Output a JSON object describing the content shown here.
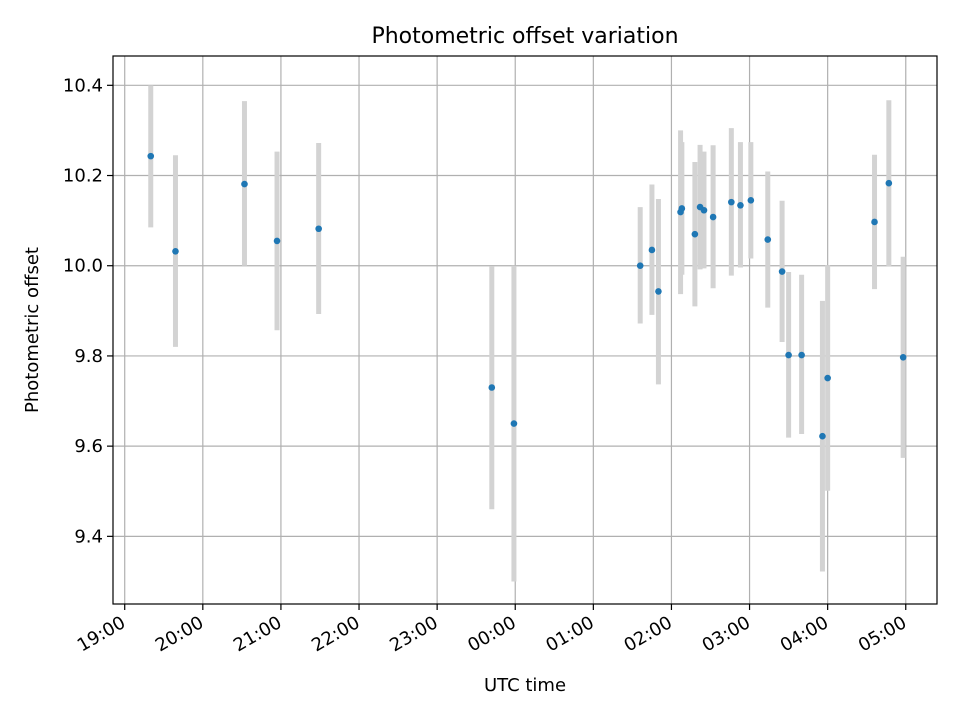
{
  "chart_data": {
    "type": "scatter",
    "title": "Photometric offset variation",
    "xlabel": "UTC time",
    "ylabel": "Photometric offset",
    "x_tick_labels": [
      "19:00",
      "20:00",
      "21:00",
      "22:00",
      "23:00",
      "00:00",
      "01:00",
      "02:00",
      "03:00",
      "04:00",
      "05:00"
    ],
    "y_ticks": [
      9.4,
      9.6,
      9.8,
      10.0,
      10.2,
      10.4
    ],
    "x_range_hours": [
      18.85,
      29.4
    ],
    "ylim": [
      9.25,
      10.465
    ],
    "grid": true,
    "error_bar_color": "#d3d3d3",
    "point_color": "#1f77b4",
    "points": [
      {
        "t": "19:20",
        "y": 10.243,
        "lo": 10.085,
        "hi": 10.4
      },
      {
        "t": "19:39",
        "y": 10.032,
        "lo": 9.82,
        "hi": 10.245
      },
      {
        "t": "20:32",
        "y": 10.181,
        "lo": 10.0,
        "hi": 10.365
      },
      {
        "t": "20:57",
        "y": 10.055,
        "lo": 9.857,
        "hi": 10.253
      },
      {
        "t": "21:29",
        "y": 10.082,
        "lo": 9.893,
        "hi": 10.272
      },
      {
        "t": "23:42",
        "y": 9.73,
        "lo": 9.46,
        "hi": 9.998
      },
      {
        "t": "23:59",
        "y": 9.65,
        "lo": 9.3,
        "hi": 10.0
      },
      {
        "t": "01:36",
        "y": 10.0,
        "lo": 9.872,
        "hi": 10.13
      },
      {
        "t": "01:45",
        "y": 10.035,
        "lo": 9.891,
        "hi": 10.18
      },
      {
        "t": "01:50",
        "y": 9.943,
        "lo": 9.737,
        "hi": 10.148
      },
      {
        "t": "02:07",
        "y": 10.119,
        "lo": 9.937,
        "hi": 10.3
      },
      {
        "t": "02:08",
        "y": 10.127,
        "lo": 9.98,
        "hi": 10.274
      },
      {
        "t": "02:18",
        "y": 10.07,
        "lo": 9.91,
        "hi": 10.23
      },
      {
        "t": "02:22",
        "y": 10.13,
        "lo": 9.992,
        "hi": 10.268
      },
      {
        "t": "02:25",
        "y": 10.123,
        "lo": 9.994,
        "hi": 10.253
      },
      {
        "t": "02:32",
        "y": 10.108,
        "lo": 9.95,
        "hi": 10.267
      },
      {
        "t": "02:46",
        "y": 10.141,
        "lo": 9.978,
        "hi": 10.305
      },
      {
        "t": "02:53",
        "y": 10.134,
        "lo": 9.996,
        "hi": 10.274
      },
      {
        "t": "03:01",
        "y": 10.145,
        "lo": 10.016,
        "hi": 10.274
      },
      {
        "t": "03:14",
        "y": 10.058,
        "lo": 9.907,
        "hi": 10.209
      },
      {
        "t": "03:25",
        "y": 9.987,
        "lo": 9.831,
        "hi": 10.144
      },
      {
        "t": "03:30",
        "y": 9.802,
        "lo": 9.619,
        "hi": 9.986
      },
      {
        "t": "03:40",
        "y": 9.802,
        "lo": 9.627,
        "hi": 9.98
      },
      {
        "t": "03:56",
        "y": 9.622,
        "lo": 9.322,
        "hi": 9.922
      },
      {
        "t": "04:00",
        "y": 9.751,
        "lo": 9.501,
        "hi": 10.001
      },
      {
        "t": "04:36",
        "y": 10.097,
        "lo": 9.948,
        "hi": 10.246
      },
      {
        "t": "04:47",
        "y": 10.183,
        "lo": 9.999,
        "hi": 10.367
      },
      {
        "t": "04:58",
        "y": 9.797,
        "lo": 9.574,
        "hi": 10.02
      }
    ]
  }
}
